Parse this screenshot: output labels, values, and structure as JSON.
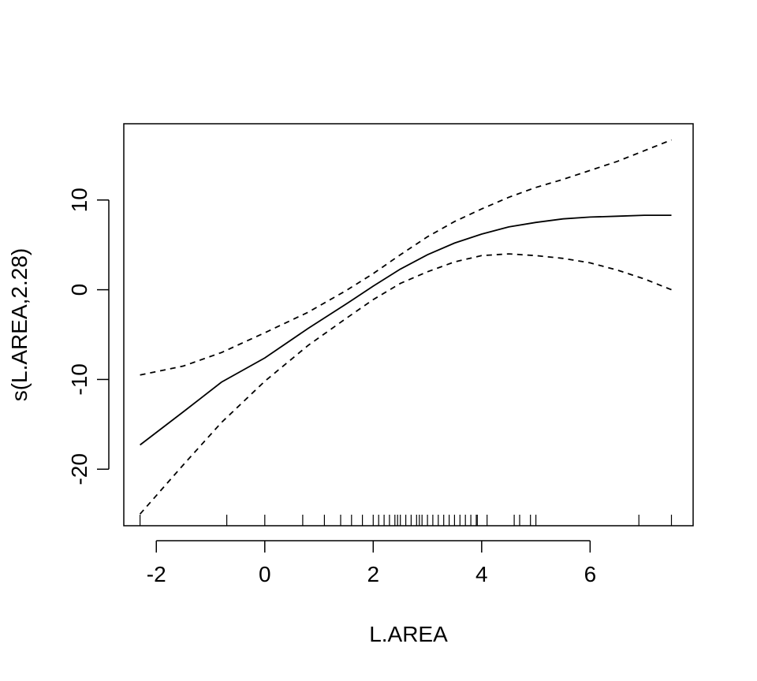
{
  "chart_data": {
    "type": "line",
    "title": "",
    "xlabel": "L.AREA",
    "ylabel": "s(L.AREA,2.28)",
    "xlim": [
      -2.6,
      7.9
    ],
    "ylim": [
      -26.3,
      18.5
    ],
    "xticks": [
      -2,
      0,
      2,
      4,
      6
    ],
    "xtick_labels": [
      "-2",
      "0",
      "2",
      "4",
      "6"
    ],
    "yticks": [
      -20,
      -10,
      0,
      10
    ],
    "ytick_labels": [
      "-20",
      "-10",
      "0",
      "10"
    ],
    "grid": false,
    "legend": "none",
    "series": [
      {
        "style": "solid",
        "x": [
          -2.3,
          -1.5,
          -0.8,
          0.0,
          0.8,
          1.5,
          2.0,
          2.5,
          3.0,
          3.5,
          4.0,
          4.5,
          5.0,
          5.5,
          6.0,
          6.5,
          7.0,
          7.5
        ],
        "y": [
          -17.3,
          -13.6,
          -10.3,
          -7.6,
          -4.3,
          -1.6,
          0.4,
          2.3,
          3.9,
          5.2,
          6.2,
          7.0,
          7.5,
          7.9,
          8.1,
          8.2,
          8.3,
          8.3
        ]
      },
      {
        "style": "dashed",
        "x": [
          -2.3,
          -1.5,
          -0.8,
          0.0,
          0.8,
          1.5,
          2.0,
          2.5,
          3.0,
          3.5,
          4.0,
          4.5,
          5.0,
          5.5,
          6.0,
          6.5,
          7.0,
          7.5
        ],
        "y": [
          -9.5,
          -8.5,
          -7.0,
          -4.8,
          -2.5,
          -0.1,
          1.8,
          3.9,
          5.9,
          7.6,
          9.0,
          10.3,
          11.4,
          12.3,
          13.3,
          14.3,
          15.5,
          16.7
        ]
      },
      {
        "style": "dashed",
        "x": [
          -2.3,
          -1.5,
          -0.8,
          0.0,
          0.8,
          1.5,
          2.0,
          2.5,
          3.0,
          3.5,
          4.0,
          4.5,
          5.0,
          5.5,
          6.0,
          6.5,
          7.0,
          7.5
        ],
        "y": [
          -25.0,
          -19.5,
          -14.8,
          -10.2,
          -6.2,
          -3.2,
          -1.1,
          0.7,
          2.0,
          3.1,
          3.8,
          4.0,
          3.8,
          3.5,
          3.0,
          2.2,
          1.2,
          0.0
        ]
      }
    ],
    "rug": [
      -2.3,
      -0.7,
      0.0,
      0.7,
      1.1,
      1.4,
      1.6,
      1.8,
      2.0,
      2.1,
      2.2,
      2.3,
      2.4,
      2.45,
      2.5,
      2.6,
      2.7,
      2.8,
      2.85,
      2.9,
      3.0,
      3.1,
      3.2,
      3.3,
      3.4,
      3.5,
      3.6,
      3.7,
      3.8,
      3.9,
      3.92,
      4.1,
      4.6,
      4.7,
      4.9,
      5.0,
      6.9,
      7.5
    ]
  }
}
